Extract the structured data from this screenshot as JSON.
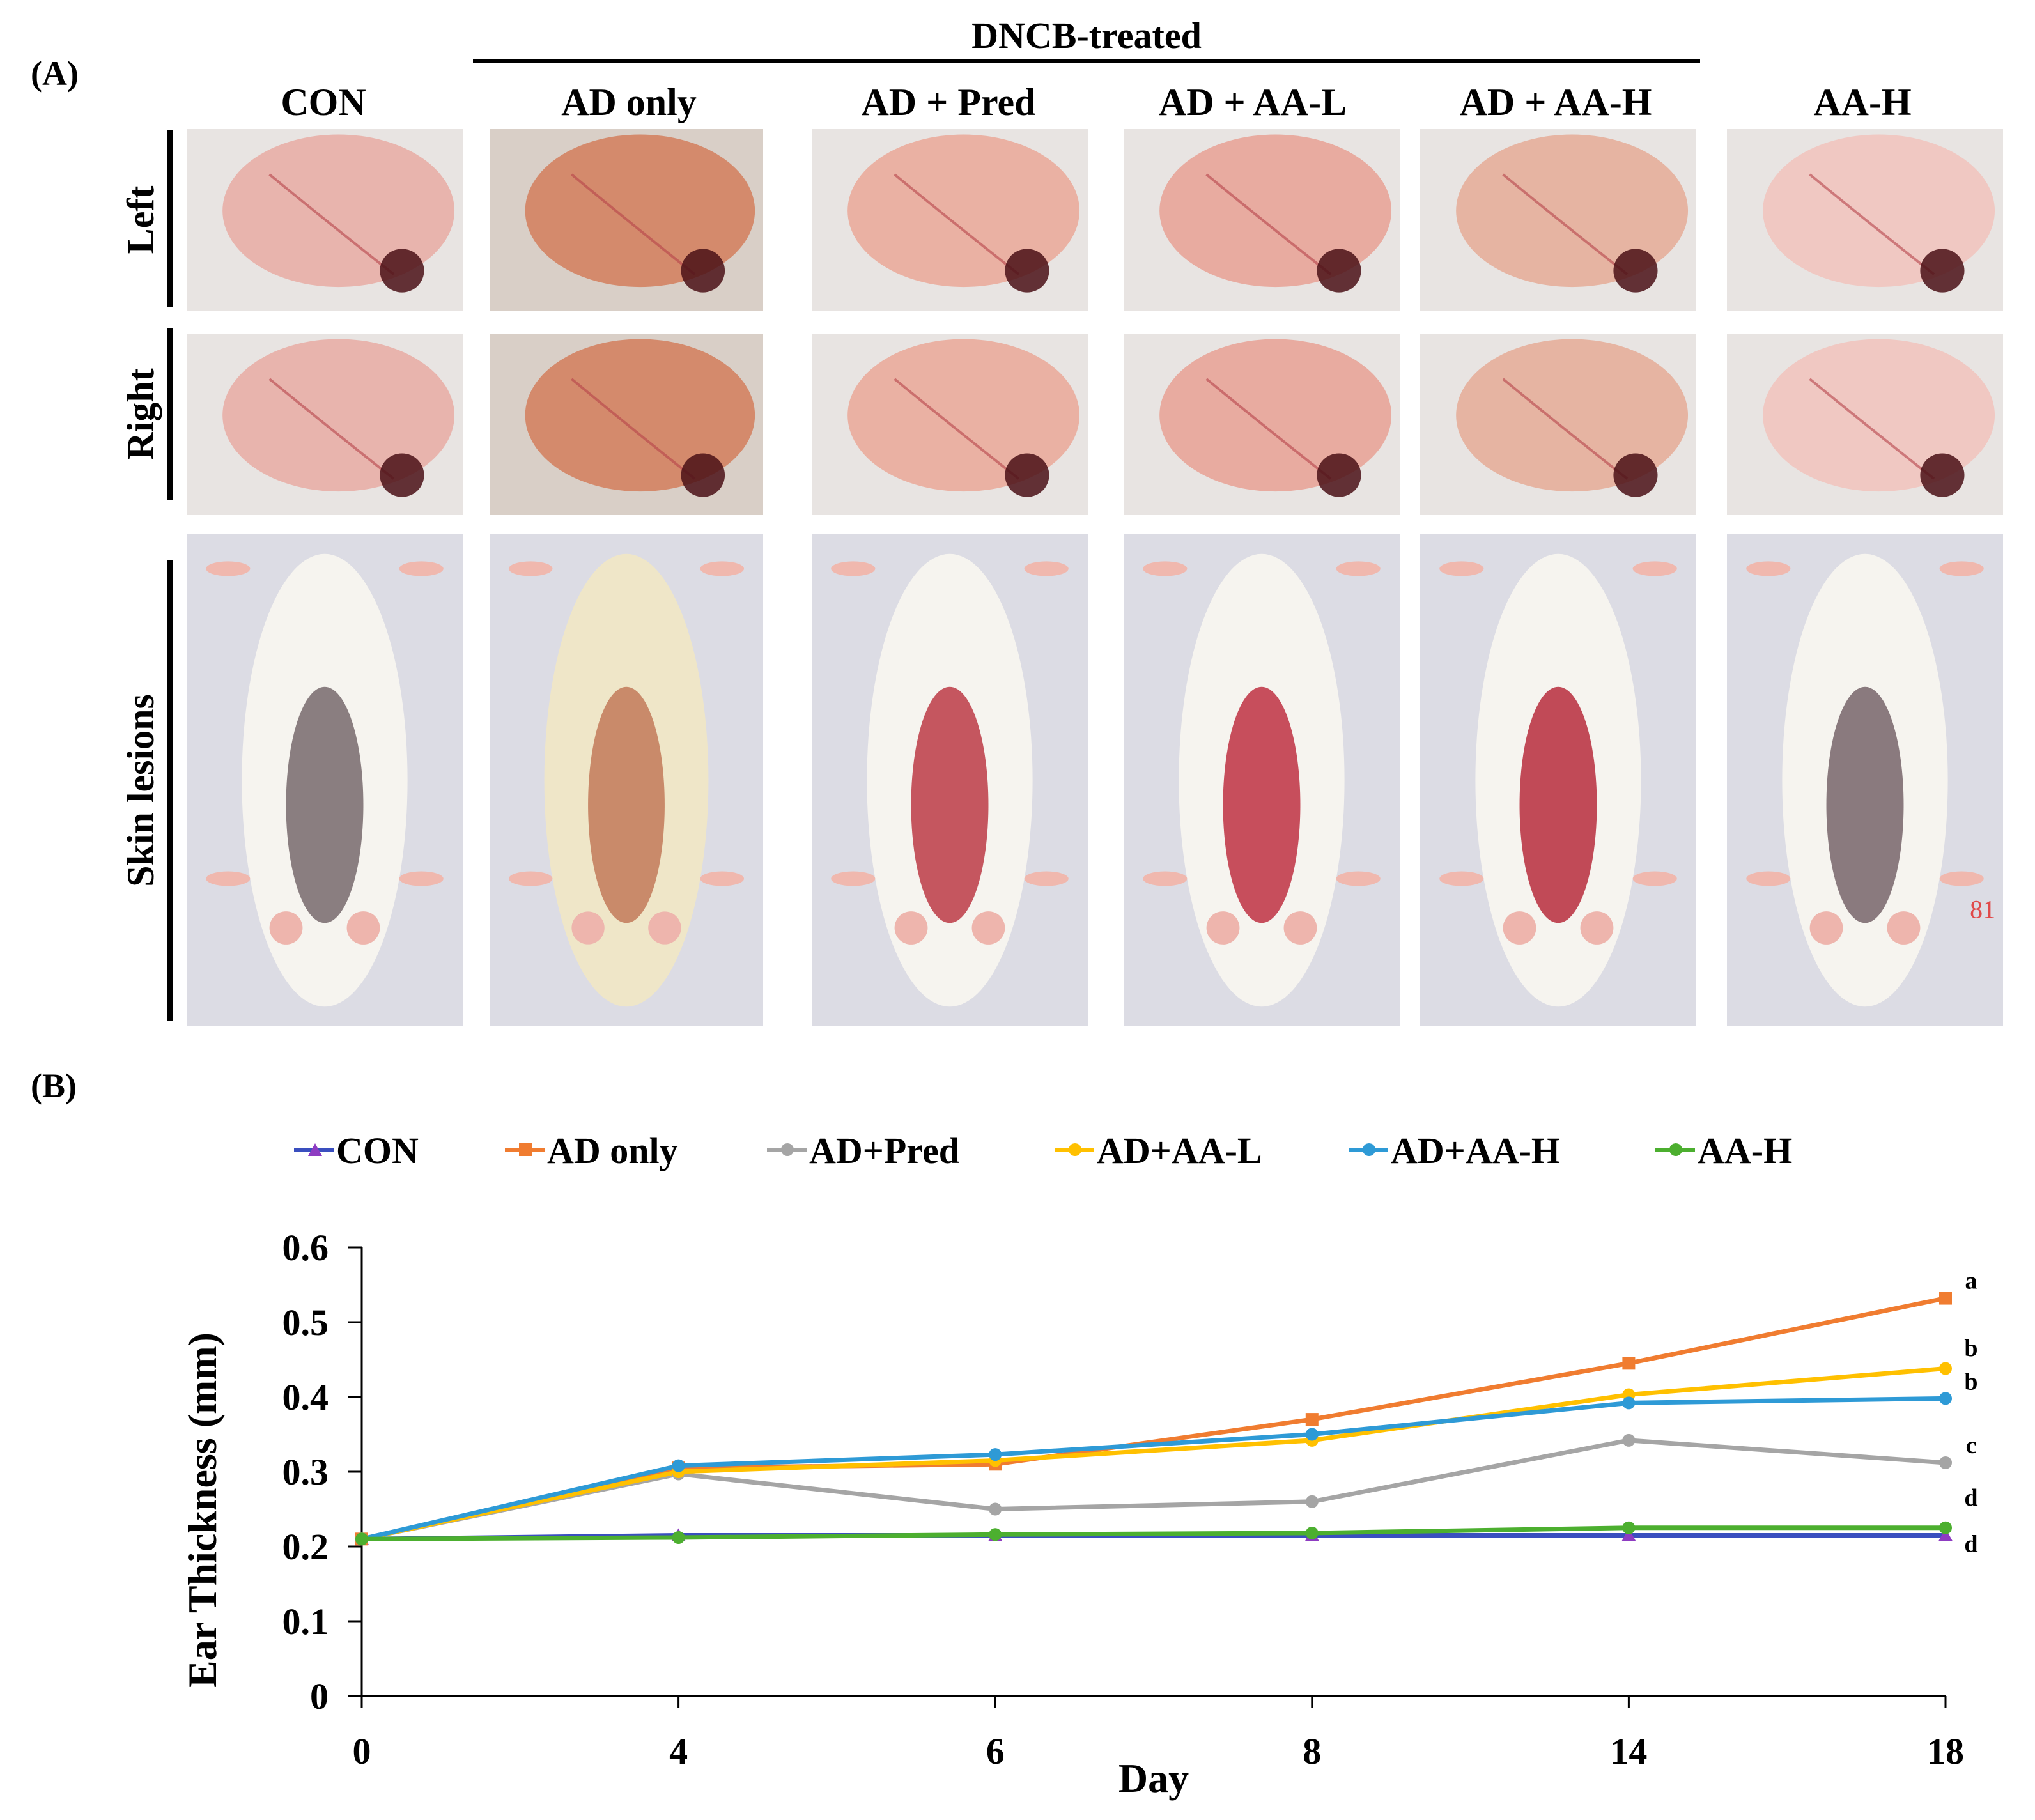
{
  "figure": {
    "panel_a_label": "(A)",
    "panel_b_label": "(B)",
    "group_label": "DNCB-treated",
    "columns": [
      "CON",
      "AD only",
      "AD + Pred",
      "AD + AA-L",
      "AD + AA-H",
      "AA-H"
    ],
    "rows": [
      "Left",
      "Right",
      "Skin lesions"
    ],
    "photo_note": "81"
  },
  "chart_data": {
    "type": "line",
    "title": "",
    "xlabel": "Day",
    "ylabel": "Ear Thickness (mm)",
    "categories": [
      "0",
      "4",
      "6",
      "8",
      "14",
      "18"
    ],
    "ylim": [
      0,
      0.6
    ],
    "yticks": [
      "0",
      "0.1",
      "0.2",
      "0.3",
      "0.4",
      "0.5",
      "0.6"
    ],
    "ytick_values": [
      0,
      0.1,
      0.2,
      0.3,
      0.4,
      0.5,
      0.6
    ],
    "grid": false,
    "legend_position": "top",
    "series": [
      {
        "name": "CON",
        "color": "#3a4fbf",
        "marker": "triangle",
        "marker_color": "#8e3cc2",
        "values": [
          0.21,
          0.215,
          0.215,
          0.215,
          0.215,
          0.215
        ]
      },
      {
        "name": "AD only",
        "color": "#f07c30",
        "marker": "square",
        "marker_color": "#f07c30",
        "values": [
          0.21,
          0.305,
          0.31,
          0.37,
          0.445,
          0.532
        ]
      },
      {
        "name": "AD+Pred",
        "color": "#a5a5a5",
        "marker": "circle",
        "marker_color": "#a5a5a5",
        "values": [
          0.21,
          0.297,
          0.25,
          0.26,
          0.342,
          0.312
        ]
      },
      {
        "name": "AD+AA-L",
        "color": "#ffc000",
        "marker": "circle",
        "marker_color": "#ffc000",
        "values": [
          0.21,
          0.3,
          0.315,
          0.342,
          0.403,
          0.438
        ]
      },
      {
        "name": "AD+AA-H",
        "color": "#2e9ad6",
        "marker": "circle",
        "marker_color": "#2e9ad6",
        "values": [
          0.21,
          0.308,
          0.323,
          0.35,
          0.392,
          0.398
        ]
      },
      {
        "name": "AA-H",
        "color": "#4caf2f",
        "marker": "circle",
        "marker_color": "#4caf2f",
        "values": [
          0.21,
          0.212,
          0.216,
          0.218,
          0.225,
          0.225
        ]
      }
    ],
    "annotations": [
      {
        "text": "a",
        "value": 0.555
      },
      {
        "text": "b",
        "value": 0.465
      },
      {
        "text": "b",
        "value": 0.42
      },
      {
        "text": "c",
        "value": 0.335
      },
      {
        "text": "d",
        "value": 0.265
      },
      {
        "text": "d",
        "value": 0.203
      }
    ]
  }
}
